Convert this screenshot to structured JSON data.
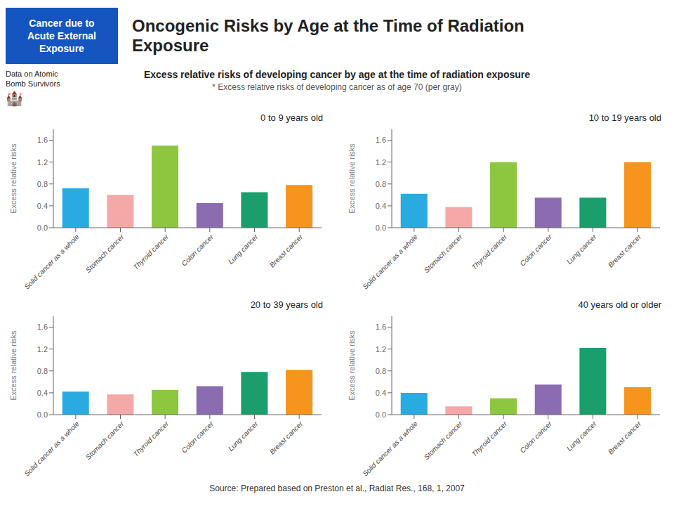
{
  "title": "Oncogenic Risks by Age at the Time of Radiation\nExposure",
  "subtitle": "Excess relative risks of developing cancer by age at the time of radiation exposure",
  "annotations": [
    "Cancer due to\nAcute External\nExposure",
    "Data on Atomic\nBomb Survivors",
    "🏰",
    "* Excess relative risks of developing cancer as of age 70 (per gray)",
    "Source: Prepared based on Preston et al., Radiat Res., 168, 1, 2007"
  ],
  "chart_data": [
    {
      "type": "bar",
      "title": "0 to 9 years old",
      "categories": [
        "Solid cancer as a whole",
        "Stomach cancer",
        "Thyroid cancer",
        "Colon cancer",
        "Lung cancer",
        "Breast cancer"
      ],
      "values": [
        0.72,
        0.6,
        1.5,
        0.45,
        0.65,
        0.78
      ],
      "colors": [
        "#29ABE2",
        "#F4A9A8",
        "#8DC63F",
        "#8B6BB1",
        "#1A9E6B",
        "#F7941D"
      ],
      "ylabel": "Excess relative risks",
      "ylim": [
        0,
        1.8
      ],
      "yticks": [
        {
          "value": 0,
          "label": "0.0"
        },
        0.4,
        0.8,
        1.2,
        1.6
      ],
      "grid": false
    },
    {
      "type": "bar",
      "title": "10 to 19 years old",
      "categories": [
        "Solid cancer as a whole",
        "Stomach cancer",
        "Thyroid cancer",
        "Colon cancer",
        "Lung cancer",
        "Breast cancer"
      ],
      "values": [
        0.62,
        0.38,
        1.2,
        0.55,
        0.55,
        1.2
      ],
      "colors": [
        "#29ABE2",
        "#F4A9A8",
        "#8DC63F",
        "#8B6BB1",
        "#1A9E6B",
        "#F7941D"
      ],
      "ylabel": "Excess relative risks",
      "ylim": [
        0,
        1.8
      ],
      "yticks": [
        {
          "value": 0,
          "label": "0.0"
        },
        0.4,
        0.8,
        1.2,
        1.6
      ],
      "grid": false
    },
    {
      "type": "bar",
      "title": "20 to 39 years old",
      "categories": [
        "Solid cancer as a whole",
        "Stomach cancer",
        "Thyroid cancer",
        "Colon cancer",
        "Lung cancer",
        "Breast cancer"
      ],
      "values": [
        0.42,
        0.37,
        0.45,
        0.52,
        0.78,
        0.82
      ],
      "colors": [
        "#29ABE2",
        "#F4A9A8",
        "#8DC63F",
        "#8B6BB1",
        "#1A9E6B",
        "#F7941D"
      ],
      "ylabel": "Excess relative risks",
      "ylim": [
        0,
        1.8
      ],
      "yticks": [
        {
          "value": 0,
          "label": "0.0"
        },
        0.4,
        0.8,
        1.2,
        1.6
      ],
      "grid": false
    },
    {
      "type": "bar",
      "title": "40 years old or older",
      "categories": [
        "Solid cancer as a whole",
        "Stomach cancer",
        "Thyroid cancer",
        "Colon cancer",
        "Lung cancer",
        "Breast cancer"
      ],
      "values": [
        0.4,
        0.15,
        0.3,
        0.55,
        1.22,
        0.5
      ],
      "colors": [
        "#29ABE2",
        "#F4A9A8",
        "#8DC63F",
        "#8B6BB1",
        "#1A9E6B",
        "#F7941D"
      ],
      "ylabel": "Excess relative risks",
      "ylim": [
        0,
        1.8
      ],
      "yticks": [
        {
          "value": 0,
          "label": "0.0"
        },
        0.4,
        0.8,
        1.2,
        1.6
      ],
      "grid": false
    }
  ]
}
